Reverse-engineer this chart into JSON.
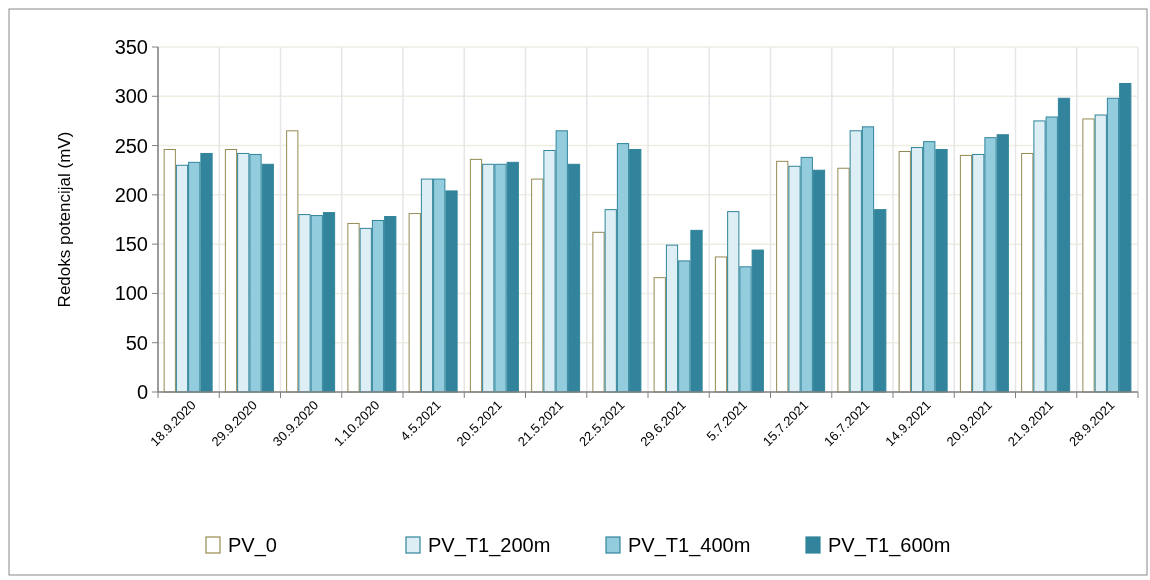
{
  "chart_data": {
    "type": "bar",
    "ylabel": "Redoks potencijal (mV)",
    "categories": [
      "18.9.2020",
      "29.9.2020",
      "30.9.2020",
      "1.10.2020",
      "4.5.2021",
      "20.5.2021",
      "21.5.2021",
      "22.5.2021",
      "29.6.2021",
      "5.7.2021",
      "15.7.2021",
      "16.7.2021",
      "14.9.2021",
      "20.9.2021",
      "21.9.2021",
      "28.9.2021"
    ],
    "series": [
      {
        "name": "PV_0",
        "color": "#ffffff",
        "values": [
          246,
          246,
          265,
          171,
          181,
          236,
          216,
          162,
          116,
          137,
          234,
          227,
          244,
          240,
          242,
          277
        ]
      },
      {
        "name": "PV_T1_200m",
        "color": "#ddeef4",
        "values": [
          230,
          242,
          180,
          166,
          216,
          231,
          245,
          185,
          149,
          183,
          229,
          265,
          248,
          241,
          275,
          281
        ]
      },
      {
        "name": "PV_T1_400m",
        "color": "#93cddd",
        "values": [
          233,
          241,
          179,
          174,
          216,
          231,
          265,
          252,
          133,
          127,
          238,
          269,
          254,
          258,
          279,
          298
        ]
      },
      {
        "name": "PV_T1_600m",
        "color": "#31849b",
        "values": [
          242,
          231,
          182,
          178,
          204,
          233,
          231,
          246,
          164,
          144,
          225,
          185,
          246,
          261,
          298,
          313
        ]
      }
    ],
    "ylim": [
      0,
      350
    ],
    "yticks": [
      0,
      50,
      100,
      150,
      200,
      250,
      300,
      350
    ],
    "grid": true,
    "legend": "bottom"
  }
}
